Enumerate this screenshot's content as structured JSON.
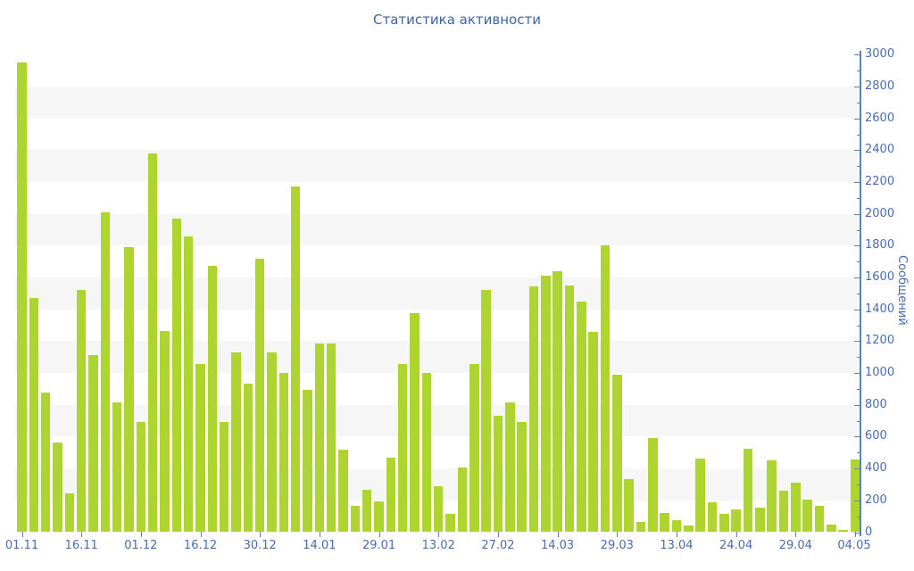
{
  "chart_data": {
    "type": "bar",
    "title": "Статистика активности",
    "ylabel": "Сообщений",
    "xlabel": "",
    "ylim": [
      0,
      3000
    ],
    "y_tick_step": 200,
    "y_minor_tick_step": 100,
    "grid": "striped-bands-every-200",
    "legend": "none",
    "y_ticks": [
      0,
      200,
      400,
      600,
      800,
      1000,
      1200,
      1400,
      1600,
      1800,
      2000,
      2200,
      2400,
      2600,
      2800,
      3000
    ],
    "x_tick_labels": [
      {
        "bar_index": 0,
        "label": "01.11"
      },
      {
        "bar_index": 5,
        "label": "16.11"
      },
      {
        "bar_index": 10,
        "label": "01.12"
      },
      {
        "bar_index": 15,
        "label": "16.12"
      },
      {
        "bar_index": 20,
        "label": "30.12"
      },
      {
        "bar_index": 25,
        "label": "14.01"
      },
      {
        "bar_index": 30,
        "label": "29.01"
      },
      {
        "bar_index": 35,
        "label": "13.02"
      },
      {
        "bar_index": 40,
        "label": "27.02"
      },
      {
        "bar_index": 45,
        "label": "14.03"
      },
      {
        "bar_index": 50,
        "label": "29.03"
      },
      {
        "bar_index": 55,
        "label": "13.04"
      },
      {
        "bar_index": 60,
        "label": "24.04"
      },
      {
        "bar_index": 65,
        "label": "29.04"
      },
      {
        "bar_index": 70,
        "label": "04.05"
      }
    ],
    "values": [
      2950,
      1470,
      880,
      565,
      245,
      1520,
      1110,
      2010,
      815,
      1790,
      695,
      2380,
      1265,
      1970,
      1860,
      1055,
      1675,
      690,
      1130,
      935,
      1720,
      1130,
      1000,
      2170,
      895,
      1185,
      1185,
      520,
      165,
      265,
      195,
      470,
      1055,
      1375,
      1000,
      290,
      115,
      405,
      1055,
      1520,
      730,
      815,
      690,
      1545,
      1610,
      1640,
      1550,
      1450,
      1260,
      1800,
      990,
      335,
      65,
      590,
      120,
      75,
      40,
      460,
      185,
      115,
      145,
      525,
      155,
      450,
      260,
      310,
      205,
      165,
      50,
      15,
      455
    ],
    "colors": {
      "bar": "#aed430",
      "title_text": "#3e63a3",
      "tick_label_text": "#4a6cb0",
      "axis_line": "#6080b8",
      "stripe_band": "#f6f6f7",
      "background": "#ffffff"
    }
  },
  "layout_note_values_unit": "messages"
}
